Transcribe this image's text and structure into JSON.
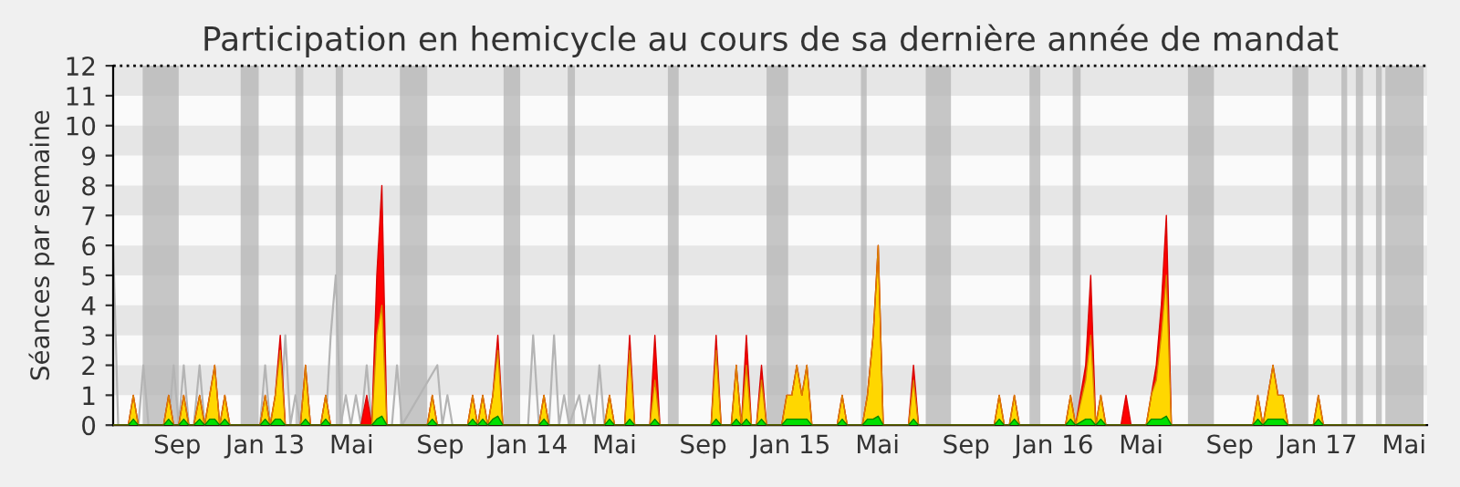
{
  "chart_data": {
    "type": "area",
    "title": "Participation en hemicycle au cours de sa dernière année de mandat",
    "ylabel": "Séances par semaine",
    "xlim": [
      "2012-06-04",
      "2017-06-02"
    ],
    "ylim": [
      0,
      12
    ],
    "yticks": [
      0,
      1,
      2,
      3,
      4,
      5,
      6,
      7,
      8,
      9,
      10,
      11,
      12
    ],
    "xticks": [
      {
        "value": "2012-09-01",
        "label": "Sep"
      },
      {
        "value": "2013-01-01",
        "label": "Jan 13"
      },
      {
        "value": "2013-05-01",
        "label": "Mai"
      },
      {
        "value": "2013-09-01",
        "label": "Sep"
      },
      {
        "value": "2014-01-01",
        "label": "Jan 14"
      },
      {
        "value": "2014-05-01",
        "label": "Mai"
      },
      {
        "value": "2014-09-01",
        "label": "Sep"
      },
      {
        "value": "2015-01-01",
        "label": "Jan 15"
      },
      {
        "value": "2015-05-01",
        "label": "Mai"
      },
      {
        "value": "2015-09-01",
        "label": "Sep"
      },
      {
        "value": "2016-01-01",
        "label": "Jan 16"
      },
      {
        "value": "2016-05-01",
        "label": "Mai"
      },
      {
        "value": "2016-09-01",
        "label": "Sep"
      },
      {
        "value": "2017-01-01",
        "label": "Jan 17"
      },
      {
        "value": "2017-05-01",
        "label": "Mai"
      }
    ],
    "grid": false,
    "legend": false,
    "bands": [
      {
        "axis": "y",
        "from": 1,
        "to": 2,
        "color": "#e6e6e6"
      },
      {
        "axis": "y",
        "from": 3,
        "to": 4,
        "color": "#e6e6e6"
      },
      {
        "axis": "y",
        "from": 5,
        "to": 6,
        "color": "#e6e6e6"
      },
      {
        "axis": "y",
        "from": 7,
        "to": 8,
        "color": "#e6e6e6"
      },
      {
        "axis": "y",
        "from": 9,
        "to": 10,
        "color": "#e6e6e6"
      },
      {
        "axis": "y",
        "from": 11,
        "to": 12,
        "color": "#e6e6e6"
      },
      {
        "axis": "x",
        "from": "2012-07-15",
        "to": "2012-09-03",
        "color": "#b4b4b4"
      },
      {
        "axis": "x",
        "from": "2012-11-28",
        "to": "2012-12-23",
        "color": "#b4b4b4"
      },
      {
        "axis": "x",
        "from": "2013-02-12",
        "to": "2013-02-23",
        "color": "#b4b4b4"
      },
      {
        "axis": "x",
        "from": "2013-04-09",
        "to": "2013-04-19",
        "color": "#b4b4b4"
      },
      {
        "axis": "x",
        "from": "2013-07-07",
        "to": "2013-08-14",
        "color": "#b4b4b4"
      },
      {
        "axis": "x",
        "from": "2013-11-28",
        "to": "2013-12-21",
        "color": "#b4b4b4"
      },
      {
        "axis": "x",
        "from": "2014-02-25",
        "to": "2014-03-07",
        "color": "#b4b4b4"
      },
      {
        "axis": "x",
        "from": "2014-07-14",
        "to": "2014-07-29",
        "color": "#b4b4b4"
      },
      {
        "axis": "x",
        "from": "2014-11-28",
        "to": "2014-12-28",
        "color": "#b4b4b4"
      },
      {
        "axis": "x",
        "from": "2015-04-08",
        "to": "2015-04-16",
        "color": "#b4b4b4"
      },
      {
        "axis": "x",
        "from": "2015-07-07",
        "to": "2015-08-11",
        "color": "#b4b4b4"
      },
      {
        "axis": "x",
        "from": "2015-11-28",
        "to": "2015-12-13",
        "color": "#b4b4b4"
      },
      {
        "axis": "x",
        "from": "2016-01-27",
        "to": "2016-02-07",
        "color": "#b4b4b4"
      },
      {
        "axis": "x",
        "from": "2016-07-05",
        "to": "2016-08-10",
        "color": "#b4b4b4"
      },
      {
        "axis": "x",
        "from": "2016-11-27",
        "to": "2016-12-19",
        "color": "#b4b4b4"
      },
      {
        "axis": "x",
        "from": "2017-02-03",
        "to": "2017-02-11",
        "color": "#b4b4b4"
      },
      {
        "axis": "x",
        "from": "2017-02-23",
        "to": "2017-03-05",
        "color": "#b4b4b4"
      },
      {
        "axis": "x",
        "from": "2017-03-23",
        "to": "2017-03-31",
        "color": "#b4b4b4"
      },
      {
        "axis": "x",
        "from": "2017-04-05",
        "to": "2017-05-28",
        "color": "#b4b4b4"
      }
    ],
    "ref_lines": [
      {
        "axis": "y",
        "value": 12,
        "color": "#000000",
        "line_style": "dotted"
      }
    ],
    "x": [
      "2012-06-04",
      "2012-06-25",
      "2012-07-02",
      "2012-07-09",
      "2012-08-13",
      "2012-08-20",
      "2012-08-27",
      "2012-09-03",
      "2012-09-10",
      "2012-09-17",
      "2012-09-24",
      "2012-10-02",
      "2012-10-09",
      "2012-10-16",
      "2012-10-23",
      "2012-10-30",
      "2012-11-06",
      "2012-11-13",
      "2012-12-25",
      "2013-01-01",
      "2013-01-08",
      "2013-01-15",
      "2013-01-22",
      "2013-01-29",
      "2013-02-19",
      "2013-02-26",
      "2013-03-05",
      "2013-03-19",
      "2013-03-26",
      "2013-04-02",
      "2013-05-14",
      "2013-05-22",
      "2013-05-29",
      "2013-06-05",
      "2013-06-12",
      "2013-06-19",
      "2013-08-14",
      "2013-08-21",
      "2013-08-28",
      "2013-10-09",
      "2013-10-16",
      "2013-10-23",
      "2013-10-30",
      "2013-11-06",
      "2013-11-13",
      "2013-11-20",
      "2013-11-27",
      "2014-01-16",
      "2014-01-23",
      "2014-01-30",
      "2014-04-17",
      "2014-04-24",
      "2014-05-01",
      "2014-05-15",
      "2014-05-22",
      "2014-05-29",
      "2014-06-19",
      "2014-06-26",
      "2014-07-03",
      "2014-09-12",
      "2014-09-19",
      "2014-09-26",
      "2014-10-10",
      "2014-10-17",
      "2014-10-24",
      "2014-10-31",
      "2014-11-07",
      "2014-11-14",
      "2014-11-21",
      "2014-11-28",
      "2014-12-19",
      "2014-12-26",
      "2015-01-02",
      "2015-01-09",
      "2015-01-16",
      "2015-01-23",
      "2015-01-30",
      "2015-03-06",
      "2015-03-13",
      "2015-03-20",
      "2015-04-10",
      "2015-04-17",
      "2015-04-25",
      "2015-05-02",
      "2015-05-09",
      "2015-06-13",
      "2015-06-20",
      "2015-06-27",
      "2015-10-10",
      "2015-10-17",
      "2015-10-24",
      "2015-10-31",
      "2015-11-07",
      "2015-11-14",
      "2016-01-17",
      "2016-01-24",
      "2016-01-31",
      "2016-02-14",
      "2016-02-21",
      "2016-02-28",
      "2016-03-06",
      "2016-03-13",
      "2016-04-03",
      "2016-04-10",
      "2016-04-17",
      "2016-05-08",
      "2016-05-15",
      "2016-05-22",
      "2016-05-29",
      "2016-06-05",
      "2016-06-12",
      "2016-10-03",
      "2016-10-10",
      "2016-10-17",
      "2016-10-24",
      "2016-10-31",
      "2016-11-07",
      "2016-11-14",
      "2016-11-21",
      "2016-12-26",
      "2017-01-02",
      "2017-01-09",
      "2017-05-30"
    ],
    "series": [
      {
        "type": "line",
        "color": "#b4b4b4",
        "x": [
          "2012-06-04",
          "2012-06-11",
          "2012-07-09",
          "2012-07-16",
          "2012-07-23",
          "2012-08-20",
          "2012-08-27",
          "2012-09-03",
          "2012-09-10",
          "2012-09-17",
          "2012-09-24",
          "2012-10-02",
          "2012-10-09",
          "2012-12-25",
          "2013-01-01",
          "2013-01-08",
          "2013-01-22",
          "2013-01-29",
          "2013-02-05",
          "2013-02-12",
          "2013-02-19",
          "2013-03-26",
          "2013-04-02",
          "2013-04-09",
          "2013-04-16",
          "2013-04-23",
          "2013-04-30",
          "2013-05-07",
          "2013-05-14",
          "2013-05-22",
          "2013-05-29",
          "2013-06-26",
          "2013-07-03",
          "2013-07-10",
          "2013-08-28",
          "2013-09-04",
          "2013-09-11",
          "2013-09-18",
          "2014-01-01",
          "2014-01-08",
          "2014-01-16",
          "2014-01-30",
          "2014-02-06",
          "2014-02-13",
          "2014-02-20",
          "2014-02-27",
          "2014-03-13",
          "2014-03-20",
          "2014-03-27",
          "2014-04-03",
          "2014-04-10",
          "2014-04-17"
        ],
        "values": [
          6,
          0,
          0,
          2,
          0,
          0,
          2,
          0,
          2,
          0,
          0,
          2,
          0,
          0,
          2,
          0,
          0,
          3,
          0,
          1,
          0,
          0,
          3,
          5,
          0,
          1,
          0,
          1,
          0,
          2,
          0,
          0,
          2,
          0,
          2,
          0,
          1,
          0,
          0,
          3,
          0,
          0,
          3,
          0,
          1,
          0,
          1,
          0,
          1,
          0,
          2,
          0
        ]
      },
      {
        "color": "#ff0000",
        "values": [
          0,
          0,
          1,
          0,
          0,
          1,
          0,
          0,
          1,
          0,
          0,
          1,
          0,
          1,
          2,
          0,
          1,
          0,
          0,
          1,
          0,
          1,
          3,
          0,
          0,
          2,
          0,
          0,
          1,
          0,
          0,
          1,
          0,
          5,
          8,
          0,
          0,
          1,
          0,
          0,
          1,
          0,
          1,
          0,
          1,
          3,
          0,
          0,
          1,
          0,
          0,
          1,
          0,
          0,
          3,
          0,
          0,
          3,
          0,
          0,
          3,
          0,
          0,
          2,
          0,
          3,
          0,
          0,
          2,
          0,
          0,
          1,
          1,
          2,
          1,
          2,
          0,
          0,
          1,
          0,
          0,
          1,
          3,
          6,
          0,
          0,
          2,
          0,
          0,
          1,
          0,
          0,
          1,
          0,
          0,
          1,
          0,
          2,
          5,
          0,
          1,
          0,
          0,
          1,
          0,
          0,
          1,
          2,
          4,
          7,
          0,
          0,
          1,
          0,
          1,
          2,
          1,
          1,
          0,
          0,
          1,
          0,
          0
        ]
      },
      {
        "color": "#ffd700",
        "values": [
          0,
          0,
          1,
          0,
          0,
          1,
          0,
          0,
          1,
          0,
          0,
          1,
          0,
          1,
          2,
          0,
          1,
          0,
          0,
          1,
          0,
          1,
          2.5,
          0,
          0,
          2,
          0,
          0,
          1,
          0,
          0,
          0,
          0,
          3,
          4,
          0,
          0,
          1,
          0,
          0,
          1,
          0,
          1,
          0,
          1,
          2.5,
          0,
          0,
          1,
          0,
          0,
          1,
          0,
          0,
          2.5,
          0,
          0,
          1.5,
          0,
          0,
          2.5,
          0,
          0,
          2,
          0,
          2,
          0,
          0,
          1.5,
          0,
          0,
          1,
          1,
          2,
          1,
          2,
          0,
          0,
          1,
          0,
          0,
          1,
          3,
          6,
          0,
          0,
          1.5,
          0,
          0,
          1,
          0,
          0,
          1,
          0,
          0,
          1,
          0,
          1.5,
          3,
          0,
          1,
          0,
          0,
          0,
          0,
          0,
          1,
          1.5,
          3,
          5,
          0,
          0,
          1,
          0,
          1,
          2,
          1,
          1,
          0,
          0,
          1,
          0,
          0
        ]
      },
      {
        "color": "#00e000",
        "values": [
          0,
          0,
          0.2,
          0,
          0,
          0.2,
          0,
          0,
          0.2,
          0,
          0,
          0.2,
          0,
          0.2,
          0.2,
          0,
          0.2,
          0,
          0,
          0.2,
          0,
          0.2,
          0.2,
          0,
          0,
          0.2,
          0,
          0,
          0.2,
          0,
          0,
          0,
          0,
          0.2,
          0.3,
          0,
          0,
          0.2,
          0,
          0,
          0.2,
          0,
          0.2,
          0,
          0.2,
          0.3,
          0,
          0,
          0.2,
          0,
          0,
          0.2,
          0,
          0,
          0.2,
          0,
          0,
          0.2,
          0,
          0,
          0.2,
          0,
          0,
          0.2,
          0,
          0.2,
          0,
          0,
          0.2,
          0,
          0,
          0.2,
          0.2,
          0.2,
          0.2,
          0.2,
          0,
          0,
          0.2,
          0,
          0,
          0.2,
          0.2,
          0.3,
          0,
          0,
          0.2,
          0,
          0,
          0.2,
          0,
          0,
          0.2,
          0,
          0,
          0.2,
          0,
          0.2,
          0.2,
          0,
          0.2,
          0,
          0,
          0,
          0,
          0,
          0.2,
          0.2,
          0.2,
          0.3,
          0,
          0,
          0.2,
          0,
          0.2,
          0.2,
          0.2,
          0.2,
          0,
          0,
          0.2,
          0,
          0
        ]
      }
    ]
  }
}
